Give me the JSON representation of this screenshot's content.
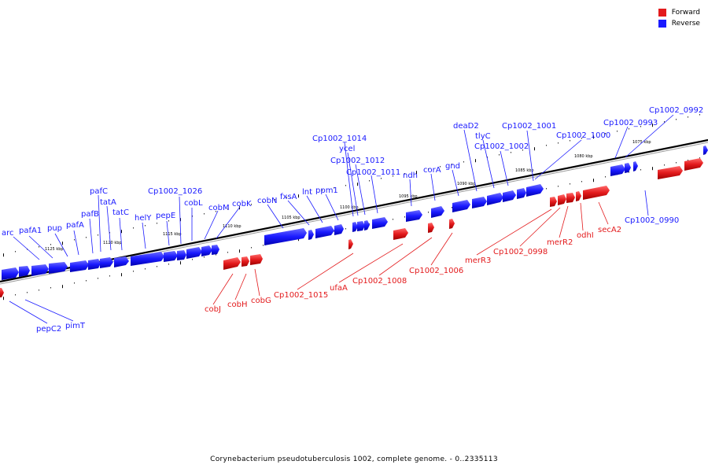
{
  "caption": "Corynebacterium pseudotuberculosis 1002, complete genome. - 0..2335113",
  "legend": {
    "forward_label": "Forward",
    "reverse_label": "Reverse",
    "forward_color": "#e31a1c",
    "reverse_color": "#1a1aff"
  },
  "scale_ticks": [
    "1125 kbp",
    "1120 kbp",
    "1115 kbp",
    "1110 kbp",
    "1105 kbp",
    "1100 kbp",
    "1095 kbp",
    "1090 kbp",
    "1085 kbp",
    "1080 kbp",
    "1075 kbp"
  ],
  "reverse_genes": [
    "arc",
    "pafA1",
    "pup",
    "pafA",
    "pafB",
    "pafC",
    "tatA",
    "tatC",
    "helY",
    "pepE",
    "Cp1002_1026",
    "cobL",
    "cobM",
    "cobK",
    "cobN",
    "fxsA",
    "lnt",
    "ppm1",
    "Cp1002_1014",
    "ycel",
    "Cp1002_1012",
    "Cp1002_1011",
    "ndh",
    "corA",
    "gnd",
    "deaD2",
    "tlyC",
    "Cp1002_1002",
    "Cp1002_1001",
    "Cp1002_1000",
    "Cp1002_0993",
    "Cp1002_0992",
    "Cp1002_0990",
    "pepC2",
    "pimT"
  ],
  "forward_genes": [
    "cobJ",
    "cobH",
    "cobG",
    "Cp1002_1015",
    "ufaA",
    "Cp1002_1008",
    "Cp1002_1006",
    "merR3",
    "Cp1002_0998",
    "merR2",
    "odhI",
    "secA2"
  ]
}
